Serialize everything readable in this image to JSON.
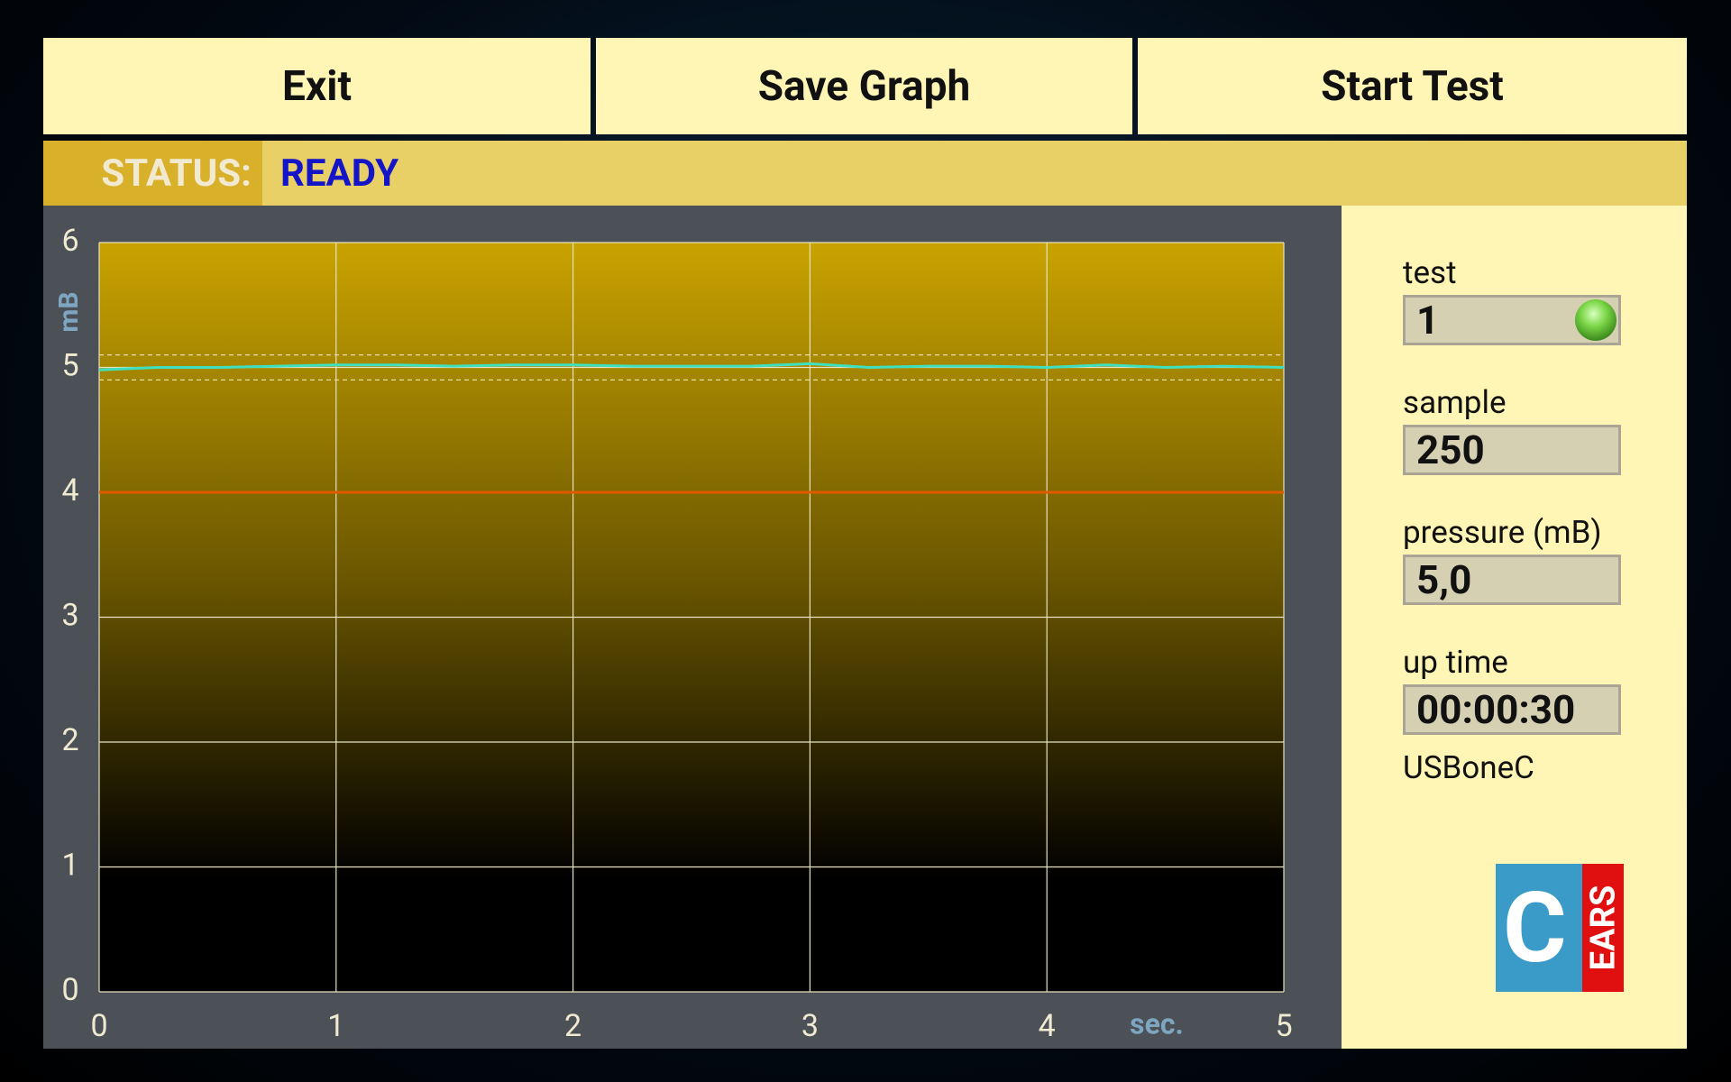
{
  "toolbar": {
    "buttons": [
      "Exit",
      "Save Graph",
      "Start Test"
    ]
  },
  "status": {
    "label": "STATUS:",
    "value": "READY"
  },
  "chart_data": {
    "type": "line",
    "ylabel": "mB",
    "xlabel": "sec.",
    "xlim": [
      0,
      5
    ],
    "ylim": [
      0,
      6
    ],
    "xticks": [
      0,
      1,
      2,
      3,
      4,
      5
    ],
    "yticks": [
      0,
      1,
      2,
      3,
      4,
      5,
      6
    ],
    "grid": true,
    "x": [
      0,
      0.25,
      0.5,
      0.75,
      1,
      1.25,
      1.5,
      1.75,
      2,
      2.25,
      2.5,
      2.75,
      3,
      3.25,
      3.5,
      3.75,
      4,
      4.25,
      4.5,
      4.75,
      5
    ],
    "series": [
      {
        "color": "#3ee0c0",
        "values": [
          4.98,
          5.0,
          5.0,
          5.01,
          5.02,
          5.02,
          5.01,
          5.02,
          5.02,
          5.01,
          5.01,
          5.01,
          5.03,
          5.0,
          5.01,
          5.01,
          5.0,
          5.02,
          5.0,
          5.01,
          5.0
        ]
      }
    ],
    "threshold": 4,
    "threshold_color": "#e05a00",
    "tolerance": [
      4.9,
      5.1
    ]
  },
  "panel": {
    "fields": [
      {
        "label": "test",
        "value": "1"
      },
      {
        "label": "sample",
        "value": "250"
      },
      {
        "label": "pressure (mB)",
        "value": "5,0"
      },
      {
        "label": "up time",
        "value": "00:00:30"
      }
    ],
    "device": "USBoneC",
    "logo": {
      "letter": "C",
      "text": "EARS"
    }
  }
}
